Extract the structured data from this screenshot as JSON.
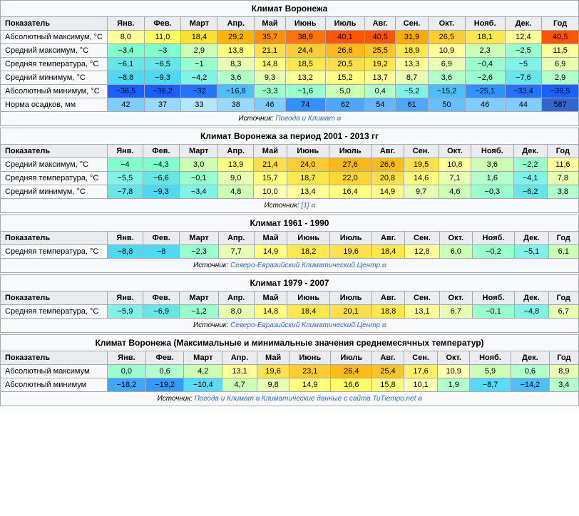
{
  "tables": [
    {
      "title": "Климат Воронежа",
      "headers": [
        "Показатель",
        "Янв.",
        "Фев.",
        "Март",
        "Апр.",
        "Май",
        "Июнь",
        "Июль",
        "Авг.",
        "Сен.",
        "Окт.",
        "Нояб.",
        "Дек.",
        "Год"
      ],
      "rows": [
        {
          "label": "Абсолютный максимум, °C",
          "values": [
            "8,0",
            "11,0",
            "18,4",
            "29,2",
            "35,7",
            "38,9",
            "40,1",
            "40,5",
            "31,9",
            "26,5",
            "18,1",
            "12,4",
            "40,5"
          ],
          "colors": [
            "#ffff99",
            "#ffff66",
            "#ffe033",
            "#ffb400",
            "#ff9100",
            "#ff7300",
            "#ff5500",
            "#ff5500",
            "#ffaa00",
            "#ffcc33",
            "#ffe84d",
            "#ffff99",
            "#ff5500"
          ]
        },
        {
          "label": "Средний максимум, °C",
          "values": [
            "−3,4",
            "−3",
            "2,9",
            "13,8",
            "21,1",
            "24,4",
            "26,6",
            "25,5",
            "18,9",
            "10,9",
            "2,3",
            "−2,5",
            "11,5"
          ],
          "colors": [
            "#80ffcc",
            "#80ffcc",
            "#ccffb3",
            "#ffff80",
            "#ffdd4d",
            "#ffcc33",
            "#ffbb1a",
            "#ffc426",
            "#ffe84d",
            "#ffff99",
            "#ccffb3",
            "#99ffcc",
            "#ffff99"
          ]
        },
        {
          "label": "Средняя температура, °C",
          "values": [
            "−6,1",
            "−6,5",
            "−1",
            "8,3",
            "14,8",
            "18,5",
            "20,5",
            "19,2",
            "13,3",
            "6,9",
            "−0,4",
            "−5",
            "6,9"
          ],
          "colors": [
            "#66e6e6",
            "#66e6e6",
            "#99ffcc",
            "#e6ffb3",
            "#ffff80",
            "#ffe84d",
            "#ffdd4d",
            "#ffe84d",
            "#ffff99",
            "#e6ffb3",
            "#99ffcc",
            "#80f2e6",
            "#e6ffb3"
          ]
        },
        {
          "label": "Средний минимум, °C",
          "values": [
            "−8,8",
            "−9,3",
            "−4,2",
            "3,6",
            "9,3",
            "13,2",
            "15,2",
            "13,7",
            "8,7",
            "3,6",
            "−2,6",
            "−7,6",
            "2,9"
          ],
          "colors": [
            "#4dd9f2",
            "#4dd9f2",
            "#80f2e6",
            "#b3ffcc",
            "#e6ffb3",
            "#ffff99",
            "#ffff80",
            "#ffff99",
            "#e6ffb3",
            "#b3ffcc",
            "#99ffcc",
            "#66e6e6",
            "#b3ffcc"
          ]
        },
        {
          "label": "Абсолютный минимум, °C",
          "values": [
            "−36,5",
            "−36,2",
            "−32",
            "−16,8",
            "−3,3",
            "−1,6",
            "5,0",
            "0,4",
            "−5,2",
            "−15,2",
            "−25,1",
            "−33,4",
            "−36,5"
          ],
          "colors": [
            "#1a5fff",
            "#1a5fff",
            "#2673ff",
            "#4dbfff",
            "#99ffcc",
            "#99ffcc",
            "#ccffb3",
            "#b3ffcc",
            "#80f2e6",
            "#4dbfff",
            "#3391ff",
            "#2673ff",
            "#1a5fff"
          ]
        },
        {
          "label": "Норма осадков, мм",
          "values": [
            "42",
            "37",
            "33",
            "38",
            "46",
            "74",
            "62",
            "54",
            "61",
            "50",
            "46",
            "44",
            "587"
          ],
          "colors": [
            "#80ccff",
            "#99d9ff",
            "#b3e6ff",
            "#99d9ff",
            "#80ccff",
            "#3391ff",
            "#4da6ff",
            "#66b3ff",
            "#4da6ff",
            "#66bfff",
            "#80ccff",
            "#80ccff",
            "#3366cc"
          ]
        }
      ],
      "source_prefix": "Источник: ",
      "source_links": [
        {
          "text": "Погода и Климат"
        }
      ]
    },
    {
      "title": "Климат Воронежа за период 2001 - 2013 гг",
      "headers": [
        "Показатель",
        "Янв.",
        "Фев.",
        "Март",
        "Апр.",
        "Май",
        "Июнь",
        "Июль",
        "Авг.",
        "Сен.",
        "Окт.",
        "Нояб.",
        "Дек.",
        "Год"
      ],
      "rows": [
        {
          "label": "Средний максимум, °C",
          "values": [
            "−4",
            "−4,3",
            "3,0",
            "13,9",
            "21,4",
            "24,0",
            "27,6",
            "26,6",
            "19,5",
            "10,8",
            "3,6",
            "−2,2",
            "11,6"
          ],
          "colors": [
            "#80ffcc",
            "#80ffcc",
            "#ccffb3",
            "#ffff80",
            "#ffdd4d",
            "#ffcc33",
            "#ffb81a",
            "#ffbb1a",
            "#ffe14d",
            "#ffff99",
            "#ccffb3",
            "#99ffcc",
            "#ffff99"
          ]
        },
        {
          "label": "Средняя температура, °C",
          "values": [
            "−5,5",
            "−6,6",
            "−0,1",
            "9,0",
            "15,7",
            "18,7",
            "22,0",
            "20,8",
            "14,6",
            "7,1",
            "1,6",
            "−4,1",
            "7,8"
          ],
          "colors": [
            "#80f2e6",
            "#66e6e6",
            "#99ffcc",
            "#e6ffb3",
            "#ffff80",
            "#ffe84d",
            "#ffd633",
            "#ffdd4d",
            "#ffff80",
            "#e6ffb3",
            "#b3ffcc",
            "#80f2e6",
            "#e6ffb3"
          ]
        },
        {
          "label": "Средний минимум, °C",
          "values": [
            "−7,8",
            "−9,3",
            "−3,4",
            "4,8",
            "10,0",
            "13,4",
            "16,4",
            "14,9",
            "9,7",
            "4,6",
            "−0,3",
            "−6,2",
            "3,8"
          ],
          "colors": [
            "#66e6e6",
            "#4dd9f2",
            "#80f2e6",
            "#ccffb3",
            "#ffffb3",
            "#ffff99",
            "#ffff80",
            "#ffff80",
            "#e6ffb3",
            "#ccffb3",
            "#99ffcc",
            "#66e6e6",
            "#b3ffcc"
          ]
        }
      ],
      "source_prefix": "Источник: ",
      "source_links": [
        {
          "text": "[1]"
        }
      ]
    },
    {
      "title": "Климат 1961 - 1990",
      "headers": [
        "Показатель",
        "Янв.",
        "Фев.",
        "Март",
        "Апр.",
        "Май",
        "Июнь",
        "Июль",
        "Авг.",
        "Сен.",
        "Окт.",
        "Нояб.",
        "Дек.",
        "Год"
      ],
      "rows": [
        {
          "label": "Средняя температура, °C",
          "values": [
            "−8,8",
            "−8",
            "−2,3",
            "7,7",
            "14,9",
            "18,2",
            "19,6",
            "18,4",
            "12,8",
            "6,0",
            "−0,2",
            "−5,1",
            "6,1"
          ],
          "colors": [
            "#4dd9f2",
            "#4dd9f2",
            "#99ffcc",
            "#e6ffb3",
            "#ffff80",
            "#ffe84d",
            "#ffe14d",
            "#ffe84d",
            "#ffff99",
            "#ccffb3",
            "#99ffcc",
            "#80f2e6",
            "#ccffb3"
          ]
        }
      ],
      "source_prefix": "Источник: ",
      "source_links": [
        {
          "text": "Северо-Евразийский Климатический Центр"
        }
      ]
    },
    {
      "title": "Климат 1979 - 2007",
      "headers": [
        "Показатель",
        "Янв.",
        "Фев.",
        "Март",
        "Апр.",
        "Май",
        "Июнь",
        "Июль",
        "Авг.",
        "Сен.",
        "Окт.",
        "Нояб.",
        "Дек.",
        "Год"
      ],
      "rows": [
        {
          "label": "Средняя температура, °C",
          "values": [
            "−5,9",
            "−6,9",
            "−1,2",
            "8,0",
            "14,8",
            "18,4",
            "20,1",
            "18,8",
            "13,1",
            "6,7",
            "−0,1",
            "−4,8",
            "6,7"
          ],
          "colors": [
            "#80f2e6",
            "#66e6e6",
            "#99ffcc",
            "#e6ffb3",
            "#ffff80",
            "#ffe84d",
            "#ffdd4d",
            "#ffe84d",
            "#ffff99",
            "#e6ffb3",
            "#99ffcc",
            "#80f2e6",
            "#e6ffb3"
          ]
        }
      ],
      "source_prefix": "Источник: ",
      "source_links": [
        {
          "text": "Северо-Евразийский Климатический Центр"
        }
      ]
    },
    {
      "title": "Климат Воронежа (Максимальные и минимальные значения среднемесячных температур)",
      "headers": [
        "Показатель",
        "Янв.",
        "Фев.",
        "Март",
        "Апр.",
        "Май",
        "Июнь",
        "Июль",
        "Авг.",
        "Сен.",
        "Окт.",
        "Нояб.",
        "Дек.",
        "Год"
      ],
      "rows": [
        {
          "label": "Абсолютный максимум",
          "values": [
            "0,0",
            "0,6",
            "4,2",
            "13,1",
            "19,6",
            "23,1",
            "26,4",
            "25,4",
            "17,6",
            "10,9",
            "5,9",
            "0,6",
            "8,9"
          ],
          "colors": [
            "#99ffcc",
            "#b3ffcc",
            "#ccffb3",
            "#ffff99",
            "#ffe14d",
            "#ffcc33",
            "#ffbb1a",
            "#ffc426",
            "#ffef66",
            "#ffffb3",
            "#ccffb3",
            "#b3ffcc",
            "#e6ffb3"
          ]
        },
        {
          "label": "Абсолютный минимум",
          "values": [
            "−18,2",
            "−19,2",
            "−10,4",
            "4,7",
            "9,8",
            "14,9",
            "16,6",
            "15,8",
            "10,1",
            "1,9",
            "−8,7",
            "−14,2",
            "3,4"
          ],
          "colors": [
            "#40a6ff",
            "#3399ff",
            "#59d9ff",
            "#ccffb3",
            "#e6ffb3",
            "#ffff80",
            "#ffff66",
            "#ffff80",
            "#ffffb3",
            "#b3ffcc",
            "#59d9ff",
            "#4dbfff",
            "#b3ffcc"
          ]
        }
      ],
      "source_prefix": "Источник: ",
      "source_links": [
        {
          "text": "Погода и Климат"
        },
        {
          "text": "Климатические данные с сайта TuTiempo.net"
        }
      ]
    }
  ]
}
